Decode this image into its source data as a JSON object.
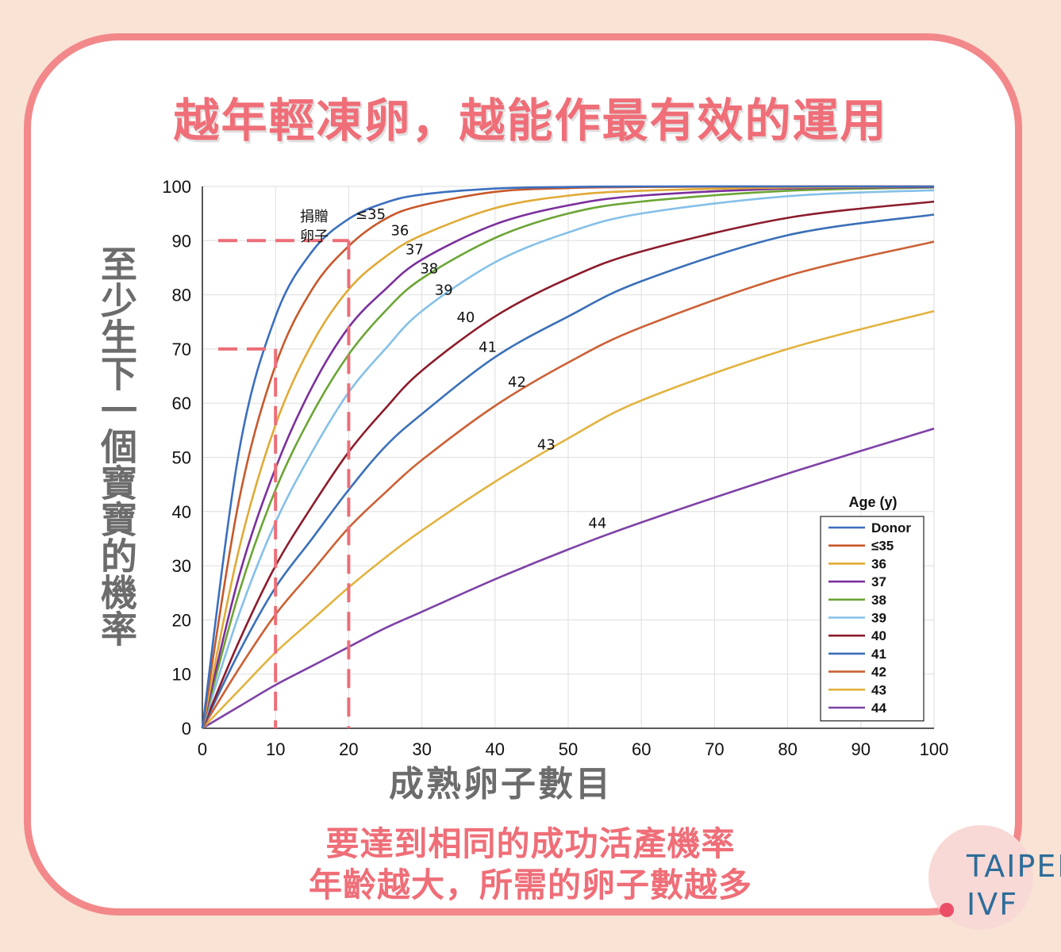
{
  "page": {
    "title": "越年輕凍卵，越能作最有效的運用",
    "y_title": "至少生下一個寶寶的機率",
    "x_title": "成熟卵子數目",
    "caption_line1": "要達到相同的成功活產機率",
    "caption_line2": "年齡越大，所需的卵子數越多",
    "logo_line1": "TAIPEI",
    "logo_line2": "IVF",
    "accent_color": "#ef6e78",
    "border_color": "#f2888a",
    "background_color": "#f9e3d4"
  },
  "chart_data": {
    "type": "line",
    "xlim": [
      0,
      100
    ],
    "ylim": [
      0,
      100
    ],
    "x_ticks": [
      0,
      10,
      20,
      30,
      40,
      50,
      60,
      70,
      80,
      90,
      100
    ],
    "y_ticks": [
      0,
      10,
      20,
      30,
      40,
      50,
      60,
      70,
      80,
      90,
      100
    ],
    "grid": true,
    "legend_title": "Age (y)",
    "legend_position": "bottom-right",
    "donor_annotation": [
      "捐贈",
      "卵子"
    ],
    "series": [
      {
        "name": "Donor",
        "color": "#3b6fbf",
        "x": [
          0,
          5,
          10,
          15,
          20,
          25,
          30,
          40,
          50,
          60,
          80,
          100
        ],
        "y": [
          0,
          51,
          76,
          88,
          94,
          97,
          98.5,
          99.6,
          99.9,
          100,
          100,
          100
        ],
        "label": "",
        "label_at": null
      },
      {
        "name": "≤35",
        "color": "#c8582b",
        "x": [
          0,
          5,
          10,
          15,
          20,
          25,
          30,
          40,
          50,
          60,
          80,
          100
        ],
        "y": [
          0,
          42,
          67,
          81,
          89,
          94,
          96.5,
          99,
          99.7,
          99.9,
          100,
          100
        ],
        "label": "≤35",
        "label_at": [
          23,
          94
        ]
      },
      {
        "name": "36",
        "color": "#e0aa35",
        "x": [
          0,
          5,
          10,
          15,
          20,
          25,
          30,
          40,
          50,
          60,
          80,
          100
        ],
        "y": [
          0,
          33,
          56,
          71,
          81,
          87,
          91,
          96,
          98.3,
          99.2,
          99.8,
          100
        ],
        "label": "36",
        "label_at": [
          27,
          91
        ]
      },
      {
        "name": "37",
        "color": "#7b2f9c",
        "x": [
          0,
          5,
          10,
          15,
          20,
          25,
          30,
          40,
          50,
          60,
          80,
          100
        ],
        "y": [
          0,
          28,
          48,
          63,
          74,
          81,
          86.5,
          93,
          96.5,
          98.3,
          99.6,
          99.9
        ],
        "label": "37",
        "label_at": [
          29,
          87.5
        ]
      },
      {
        "name": "38",
        "color": "#6ba535",
        "x": [
          0,
          5,
          10,
          15,
          20,
          25,
          30,
          40,
          50,
          60,
          80,
          100
        ],
        "y": [
          0,
          25,
          44,
          58,
          69,
          77,
          83,
          90.5,
          95,
          97.2,
          99.2,
          99.8
        ],
        "label": "38",
        "label_at": [
          31,
          84
        ]
      },
      {
        "name": "39",
        "color": "#85c0e8",
        "x": [
          0,
          5,
          10,
          15,
          20,
          25,
          30,
          40,
          50,
          60,
          80,
          100
        ],
        "y": [
          0,
          21,
          38,
          51,
          62,
          70,
          77,
          86,
          91.5,
          95,
          98.2,
          99.3
        ],
        "label": "39",
        "label_at": [
          33,
          80
        ]
      },
      {
        "name": "40",
        "color": "#8c1c2c",
        "x": [
          0,
          5,
          10,
          15,
          20,
          25,
          30,
          40,
          50,
          60,
          80,
          100
        ],
        "y": [
          0,
          16,
          30,
          41,
          51,
          59,
          66,
          76,
          83,
          88,
          94.2,
          97.2
        ],
        "label": "40",
        "label_at": [
          36,
          75
        ]
      },
      {
        "name": "41",
        "color": "#3b70b8",
        "x": [
          0,
          5,
          10,
          15,
          20,
          25,
          30,
          40,
          50,
          60,
          80,
          100
        ],
        "y": [
          0,
          14,
          26,
          35,
          44,
          52,
          58,
          68.5,
          76,
          82.5,
          91,
          94.8
        ],
        "label": "41",
        "label_at": [
          39,
          69.5
        ]
      },
      {
        "name": "42",
        "color": "#cc6035",
        "x": [
          0,
          5,
          10,
          15,
          20,
          25,
          30,
          40,
          50,
          60,
          80,
          100
        ],
        "y": [
          0,
          11,
          21,
          29,
          37,
          43.5,
          49.5,
          59.5,
          67.5,
          74,
          83.5,
          89.8
        ],
        "label": "42",
        "label_at": [
          43,
          63
        ]
      },
      {
        "name": "43",
        "color": "#e2b33f",
        "x": [
          0,
          5,
          10,
          15,
          20,
          25,
          30,
          40,
          50,
          60,
          80,
          100
        ],
        "y": [
          0,
          7,
          14,
          20,
          26,
          31.5,
          36.5,
          45.5,
          53.5,
          60.5,
          70,
          77
        ],
        "label": "43",
        "label_at": [
          47,
          51.5
        ]
      },
      {
        "name": "44",
        "color": "#7e42a6",
        "x": [
          0,
          5,
          10,
          15,
          20,
          25,
          30,
          40,
          50,
          60,
          80,
          100
        ],
        "y": [
          0,
          4,
          8,
          11.5,
          15,
          18.5,
          21.5,
          27.5,
          33,
          38,
          47,
          55.3
        ],
        "label": "44",
        "label_at": [
          54,
          37
        ]
      }
    ],
    "reference_lines": [
      {
        "from_y": 90,
        "at_x": 20
      },
      {
        "from_y": 70,
        "at_x": 10
      }
    ]
  }
}
